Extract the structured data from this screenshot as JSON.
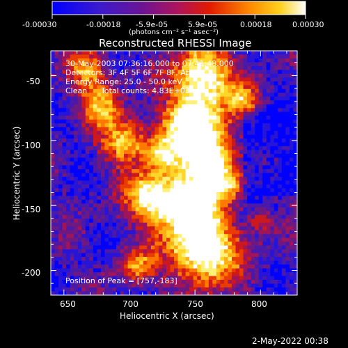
{
  "chart_data": {
    "type": "heatmap",
    "title": "Reconstructed RHESSI Image",
    "xlabel": "Heliocentric X (arcsec)",
    "ylabel": "Heliocentric Y (arcsec)",
    "xlim": [
      640,
      828
    ],
    "ylim": [
      -219,
      -31
    ],
    "xticks": [
      650,
      700,
      750,
      800
    ],
    "yticks": [
      -50,
      -100,
      -150,
      -200
    ],
    "colorbar": {
      "range": [
        -0.0003,
        0.0003
      ],
      "tick_labels": [
        "-0.00030",
        "-0.00018",
        "-5.9e-05",
        "5.9e-05",
        "0.00018",
        "0.00030"
      ],
      "unit": "(photons cm⁻² s⁻¹ asec⁻²)",
      "colors": [
        "#0000ff",
        "#5a14a6",
        "#a0146e",
        "#e01a00",
        "#ff7a00",
        "#ffd21e",
        "#ffffff"
      ]
    },
    "annotations": [
      "30-May-2003 07:36:16.000 to 07:41:48.000",
      "Detectors: 3F 4F 5F 6F 7F 8F, Att 0",
      "Energy Range: 25.0 - 50.0 keV",
      "Clean",
      "Total counts: 4.83E+03"
    ],
    "peak_label": "Position of Peak = [757,-183]",
    "peak_position": [
      757,
      -183
    ],
    "timestamp": "2-May-2022 00:38"
  }
}
